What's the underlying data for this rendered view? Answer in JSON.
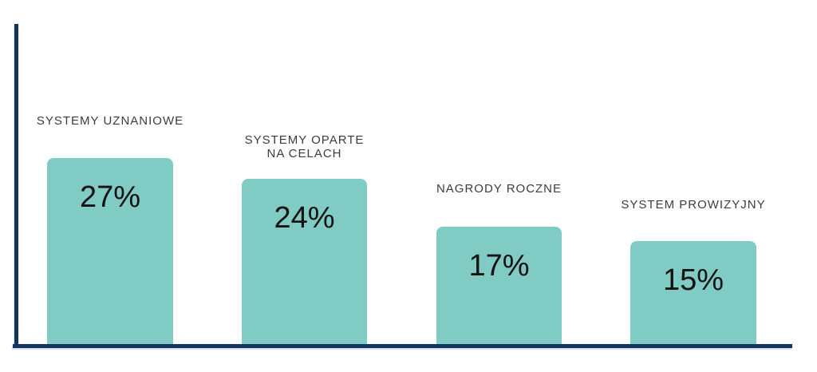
{
  "chart_data": {
    "type": "bar",
    "title": "",
    "xlabel": "",
    "ylabel": "",
    "categories": [
      "SYSTEMY UZNANIOWE",
      "SYSTEMY OPARTE NA CELACH",
      "NAGRODY ROCZNE",
      "SYSTEM PROWIZYJNY"
    ],
    "values": [
      27,
      24,
      17,
      15
    ],
    "bars": [
      {
        "category_lines": [
          "SYSTEMY UZNANIOWE"
        ],
        "value": 27,
        "value_label": "27%"
      },
      {
        "category_lines": [
          "SYSTEMY OPARTE",
          "NA CELACH"
        ],
        "value": 24,
        "value_label": "24%"
      },
      {
        "category_lines": [
          "NAGRODY ROCZNE"
        ],
        "value": 17,
        "value_label": "17%"
      },
      {
        "category_lines": [
          "SYSTEM PROWIZYJNY"
        ],
        "value": 15,
        "value_label": "15%"
      }
    ],
    "ylim": [
      0,
      46
    ],
    "grid": false,
    "legend": false,
    "axes_visible": {
      "x": true,
      "y": true,
      "ticks": false
    },
    "colors": {
      "bar_fill": "#80cbc4",
      "axis": "#13345c",
      "category_label": "#3c3c3c",
      "value_label": "#121212",
      "background": "#ffffff"
    }
  }
}
